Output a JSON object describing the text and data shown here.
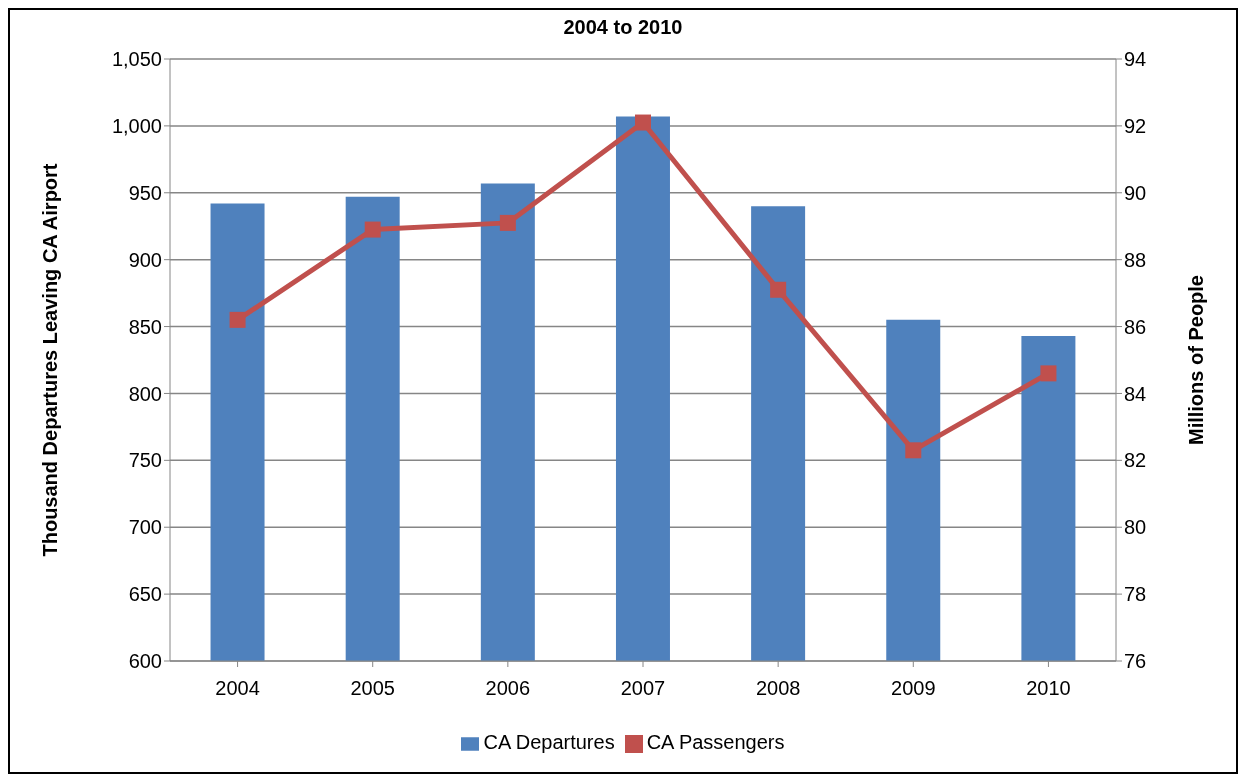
{
  "chart_data": {
    "type": "bar",
    "title": "2004 to 2010",
    "categories": [
      "2004",
      "2005",
      "2006",
      "2007",
      "2008",
      "2009",
      "2010"
    ],
    "series": [
      {
        "name": "CA Departures",
        "color": "#4f81bd",
        "values": [
          942,
          947,
          957,
          1007,
          940,
          855,
          843
        ]
      },
      {
        "name": "CA Passengers",
        "type": "line",
        "axis": "y2",
        "color": "#c0504d",
        "values": [
          86.2,
          88.9,
          89.1,
          92.1,
          87.1,
          82.3,
          84.6
        ]
      }
    ],
    "ylabel": "Thousand Departures Leaving CA Airport",
    "y2label": "Millions of People",
    "ylim": [
      600,
      1050
    ],
    "yticks": [
      {
        "value": 600,
        "label": "600"
      },
      {
        "value": 650,
        "label": "650"
      },
      {
        "value": 700,
        "label": "700"
      },
      {
        "value": 750,
        "label": "750"
      },
      {
        "value": 800,
        "label": "800"
      },
      {
        "value": 850,
        "label": "850"
      },
      {
        "value": 900,
        "label": "900"
      },
      {
        "value": 950,
        "label": "950"
      },
      {
        "value": 1000,
        "label": "1,000"
      },
      {
        "value": 1050,
        "label": "1,050"
      }
    ],
    "y2lim": [
      76,
      94
    ],
    "y2ticks": [
      76,
      78,
      80,
      82,
      84,
      86,
      88,
      90,
      92,
      94
    ],
    "grid": "y",
    "legend": "bottom",
    "marker": "square"
  }
}
